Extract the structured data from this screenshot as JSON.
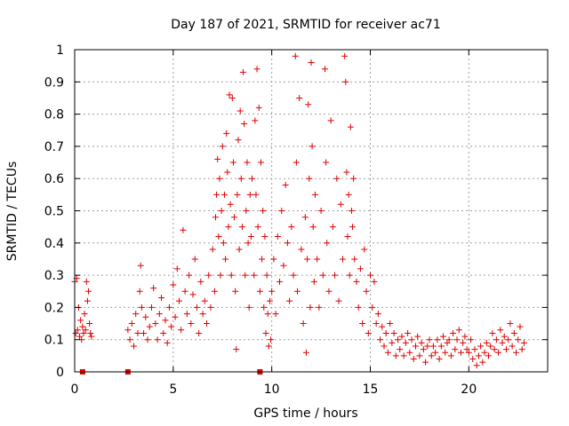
{
  "chart_data": {
    "type": "scatter",
    "title": "Day 187 of 2021, SRMTID for receiver ac71",
    "xlabel": "GPS time / hours",
    "ylabel": "SRMTID / TECUs",
    "xlim": [
      0,
      24
    ],
    "ylim": [
      0,
      1
    ],
    "grid": true,
    "marker": "+",
    "color": "#e00000",
    "x_ticks": [
      {
        "value": 0,
        "label": "0"
      },
      {
        "value": 5,
        "label": "5"
      },
      {
        "value": 10,
        "label": "10"
      },
      {
        "value": 15,
        "label": "15"
      },
      {
        "value": 20,
        "label": "20"
      }
    ],
    "y_ticks": [
      {
        "value": 0,
        "label": "0"
      },
      {
        "value": 0.1,
        "label": "0.1"
      },
      {
        "value": 0.2,
        "label": "0.2"
      },
      {
        "value": 0.3,
        "label": "0.3"
      },
      {
        "value": 0.4,
        "label": "0.4"
      },
      {
        "value": 0.5,
        "label": "0.5"
      },
      {
        "value": 0.6,
        "label": "0.6"
      },
      {
        "value": 0.7,
        "label": "0.7"
      },
      {
        "value": 0.8,
        "label": "0.8"
      },
      {
        "value": 0.9,
        "label": "0.9"
      },
      {
        "value": 1,
        "label": "1"
      }
    ],
    "series": [
      {
        "name": "SRMTID",
        "points": [
          [
            0.0,
            0.28
          ],
          [
            0.05,
            0.12
          ],
          [
            0.1,
            0.29
          ],
          [
            0.15,
            0.13
          ],
          [
            0.2,
            0.2
          ],
          [
            0.25,
            0.11
          ],
          [
            0.3,
            0.16
          ],
          [
            0.35,
            0.1
          ],
          [
            0.4,
            0.14
          ],
          [
            0.45,
            0.12
          ],
          [
            0.5,
            0.18
          ],
          [
            0.55,
            0.13
          ],
          [
            0.6,
            0.28
          ],
          [
            0.65,
            0.22
          ],
          [
            0.7,
            0.25
          ],
          [
            0.75,
            0.15
          ],
          [
            0.8,
            0.12
          ],
          [
            0.85,
            0.11
          ],
          [
            2.7,
            0.13
          ],
          [
            2.8,
            0.1
          ],
          [
            2.9,
            0.15
          ],
          [
            3.0,
            0.08
          ],
          [
            3.1,
            0.18
          ],
          [
            3.2,
            0.12
          ],
          [
            3.3,
            0.25
          ],
          [
            3.35,
            0.33
          ],
          [
            3.4,
            0.2
          ],
          [
            3.5,
            0.12
          ],
          [
            3.6,
            0.17
          ],
          [
            3.7,
            0.1
          ],
          [
            3.8,
            0.14
          ],
          [
            3.9,
            0.2
          ],
          [
            4.0,
            0.26
          ],
          [
            4.1,
            0.15
          ],
          [
            4.2,
            0.1
          ],
          [
            4.3,
            0.18
          ],
          [
            4.4,
            0.23
          ],
          [
            4.5,
            0.12
          ],
          [
            4.6,
            0.16
          ],
          [
            4.7,
            0.09
          ],
          [
            4.8,
            0.2
          ],
          [
            4.9,
            0.14
          ],
          [
            5.0,
            0.27
          ],
          [
            5.1,
            0.17
          ],
          [
            5.2,
            0.32
          ],
          [
            5.3,
            0.22
          ],
          [
            5.4,
            0.13
          ],
          [
            5.5,
            0.44
          ],
          [
            5.6,
            0.25
          ],
          [
            5.7,
            0.18
          ],
          [
            5.8,
            0.3
          ],
          [
            5.9,
            0.15
          ],
          [
            6.0,
            0.24
          ],
          [
            6.1,
            0.35
          ],
          [
            6.2,
            0.2
          ],
          [
            6.3,
            0.12
          ],
          [
            6.4,
            0.28
          ],
          [
            6.5,
            0.18
          ],
          [
            6.6,
            0.22
          ],
          [
            6.7,
            0.15
          ],
          [
            6.8,
            0.3
          ],
          [
            6.9,
            0.2
          ],
          [
            7.0,
            0.38
          ],
          [
            7.1,
            0.25
          ],
          [
            7.15,
            0.48
          ],
          [
            7.2,
            0.55
          ],
          [
            7.25,
            0.66
          ],
          [
            7.3,
            0.42
          ],
          [
            7.35,
            0.6
          ],
          [
            7.4,
            0.3
          ],
          [
            7.45,
            0.5
          ],
          [
            7.5,
            0.7
          ],
          [
            7.55,
            0.4
          ],
          [
            7.6,
            0.55
          ],
          [
            7.65,
            0.35
          ],
          [
            7.7,
            0.74
          ],
          [
            7.75,
            0.62
          ],
          [
            7.8,
            0.45
          ],
          [
            7.85,
            0.86
          ],
          [
            7.9,
            0.52
          ],
          [
            7.95,
            0.3
          ],
          [
            8.0,
            0.85
          ],
          [
            8.05,
            0.65
          ],
          [
            8.1,
            0.48
          ],
          [
            8.15,
            0.25
          ],
          [
            8.2,
            0.07
          ],
          [
            8.25,
            0.55
          ],
          [
            8.3,
            0.72
          ],
          [
            8.35,
            0.38
          ],
          [
            8.4,
            0.81
          ],
          [
            8.45,
            0.6
          ],
          [
            8.5,
            0.45
          ],
          [
            8.55,
            0.93
          ],
          [
            8.6,
            0.77
          ],
          [
            8.65,
            0.3
          ],
          [
            8.7,
            0.5
          ],
          [
            8.75,
            0.65
          ],
          [
            8.8,
            0.4
          ],
          [
            8.85,
            0.2
          ],
          [
            8.9,
            0.55
          ],
          [
            8.95,
            0.42
          ],
          [
            9.0,
            0.6
          ],
          [
            9.1,
            0.3
          ],
          [
            9.15,
            0.78
          ],
          [
            9.2,
            0.55
          ],
          [
            9.25,
            0.94
          ],
          [
            9.3,
            0.45
          ],
          [
            9.35,
            0.82
          ],
          [
            9.4,
            0.25
          ],
          [
            9.45,
            0.65
          ],
          [
            9.5,
            0.35
          ],
          [
            9.55,
            0.5
          ],
          [
            9.6,
            0.2
          ],
          [
            9.65,
            0.42
          ],
          [
            9.7,
            0.12
          ],
          [
            9.75,
            0.3
          ],
          [
            9.8,
            0.18
          ],
          [
            9.85,
            0.08
          ],
          [
            9.9,
            0.22
          ],
          [
            9.95,
            0.1
          ],
          [
            10.0,
            0.25
          ],
          [
            10.1,
            0.35
          ],
          [
            10.2,
            0.18
          ],
          [
            10.3,
            0.42
          ],
          [
            10.4,
            0.28
          ],
          [
            10.5,
            0.5
          ],
          [
            10.6,
            0.33
          ],
          [
            10.7,
            0.58
          ],
          [
            10.8,
            0.4
          ],
          [
            10.9,
            0.22
          ],
          [
            11.0,
            0.45
          ],
          [
            11.1,
            0.3
          ],
          [
            11.2,
            0.98
          ],
          [
            11.25,
            0.65
          ],
          [
            11.3,
            0.25
          ],
          [
            11.4,
            0.85
          ],
          [
            11.5,
            0.38
          ],
          [
            11.6,
            0.15
          ],
          [
            11.7,
            0.48
          ],
          [
            11.75,
            0.06
          ],
          [
            11.8,
            0.35
          ],
          [
            11.85,
            0.83
          ],
          [
            11.9,
            0.6
          ],
          [
            11.95,
            0.2
          ],
          [
            12.0,
            0.96
          ],
          [
            12.05,
            0.7
          ],
          [
            12.1,
            0.45
          ],
          [
            12.15,
            0.28
          ],
          [
            12.2,
            0.55
          ],
          [
            12.3,
            0.35
          ],
          [
            12.4,
            0.2
          ],
          [
            12.5,
            0.5
          ],
          [
            12.6,
            0.3
          ],
          [
            12.7,
            0.94
          ],
          [
            12.75,
            0.65
          ],
          [
            12.8,
            0.4
          ],
          [
            12.9,
            0.25
          ],
          [
            13.0,
            0.78
          ],
          [
            13.1,
            0.45
          ],
          [
            13.2,
            0.3
          ],
          [
            13.3,
            0.6
          ],
          [
            13.4,
            0.22
          ],
          [
            13.5,
            0.52
          ],
          [
            13.6,
            0.35
          ],
          [
            13.7,
            0.98
          ],
          [
            13.75,
            0.9
          ],
          [
            13.8,
            0.62
          ],
          [
            13.85,
            0.42
          ],
          [
            13.9,
            0.55
          ],
          [
            13.95,
            0.3
          ],
          [
            14.0,
            0.76
          ],
          [
            14.05,
            0.5
          ],
          [
            14.1,
            0.45
          ],
          [
            14.15,
            0.6
          ],
          [
            14.2,
            0.35
          ],
          [
            14.3,
            0.28
          ],
          [
            14.4,
            0.2
          ],
          [
            14.5,
            0.32
          ],
          [
            14.6,
            0.15
          ],
          [
            14.7,
            0.38
          ],
          [
            14.8,
            0.25
          ],
          [
            14.9,
            0.12
          ],
          [
            15.0,
            0.3
          ],
          [
            15.1,
            0.2
          ],
          [
            15.2,
            0.28
          ],
          [
            15.3,
            0.15
          ],
          [
            15.4,
            0.18
          ],
          [
            15.5,
            0.1
          ],
          [
            15.6,
            0.14
          ],
          [
            15.7,
            0.08
          ],
          [
            15.8,
            0.12
          ],
          [
            15.9,
            0.06
          ],
          [
            16.0,
            0.15
          ],
          [
            16.1,
            0.09
          ],
          [
            16.2,
            0.12
          ],
          [
            16.3,
            0.05
          ],
          [
            16.4,
            0.1
          ],
          [
            16.5,
            0.07
          ],
          [
            16.6,
            0.11
          ],
          [
            16.7,
            0.05
          ],
          [
            16.8,
            0.09
          ],
          [
            16.9,
            0.12
          ],
          [
            17.0,
            0.06
          ],
          [
            17.1,
            0.1
          ],
          [
            17.2,
            0.04
          ],
          [
            17.3,
            0.08
          ],
          [
            17.4,
            0.11
          ],
          [
            17.5,
            0.05
          ],
          [
            17.6,
            0.09
          ],
          [
            17.7,
            0.07
          ],
          [
            17.8,
            0.03
          ],
          [
            17.9,
            0.08
          ],
          [
            18.0,
            0.1
          ],
          [
            18.1,
            0.05
          ],
          [
            18.2,
            0.08
          ],
          [
            18.3,
            0.06
          ],
          [
            18.4,
            0.1
          ],
          [
            18.5,
            0.04
          ],
          [
            18.6,
            0.08
          ],
          [
            18.7,
            0.11
          ],
          [
            18.8,
            0.06
          ],
          [
            18.9,
            0.09
          ],
          [
            19.0,
            0.1
          ],
          [
            19.1,
            0.05
          ],
          [
            19.2,
            0.12
          ],
          [
            19.3,
            0.07
          ],
          [
            19.4,
            0.1
          ],
          [
            19.5,
            0.13
          ],
          [
            19.6,
            0.06
          ],
          [
            19.7,
            0.09
          ],
          [
            19.8,
            0.11
          ],
          [
            19.9,
            0.07
          ],
          [
            20.0,
            0.06
          ],
          [
            20.1,
            0.1
          ],
          [
            20.2,
            0.04
          ],
          [
            20.3,
            0.07
          ],
          [
            20.4,
            0.02
          ],
          [
            20.5,
            0.05
          ],
          [
            20.6,
            0.08
          ],
          [
            20.7,
            0.03
          ],
          [
            20.8,
            0.06
          ],
          [
            20.9,
            0.09
          ],
          [
            21.0,
            0.05
          ],
          [
            21.1,
            0.08
          ],
          [
            21.2,
            0.12
          ],
          [
            21.3,
            0.07
          ],
          [
            21.4,
            0.1
          ],
          [
            21.5,
            0.06
          ],
          [
            21.6,
            0.13
          ],
          [
            21.7,
            0.09
          ],
          [
            21.8,
            0.11
          ],
          [
            21.9,
            0.07
          ],
          [
            22.0,
            0.1
          ],
          [
            22.1,
            0.15
          ],
          [
            22.2,
            0.08
          ],
          [
            22.3,
            0.12
          ],
          [
            22.4,
            0.06
          ],
          [
            22.5,
            0.1
          ],
          [
            22.6,
            0.14
          ],
          [
            22.7,
            0.07
          ],
          [
            22.8,
            0.09
          ]
        ]
      }
    ],
    "markers": [
      {
        "x": 0.4,
        "y": 0,
        "shape": "square"
      },
      {
        "x": 2.7,
        "y": 0,
        "shape": "square"
      },
      {
        "x": 9.4,
        "y": 0,
        "shape": "square"
      }
    ]
  }
}
